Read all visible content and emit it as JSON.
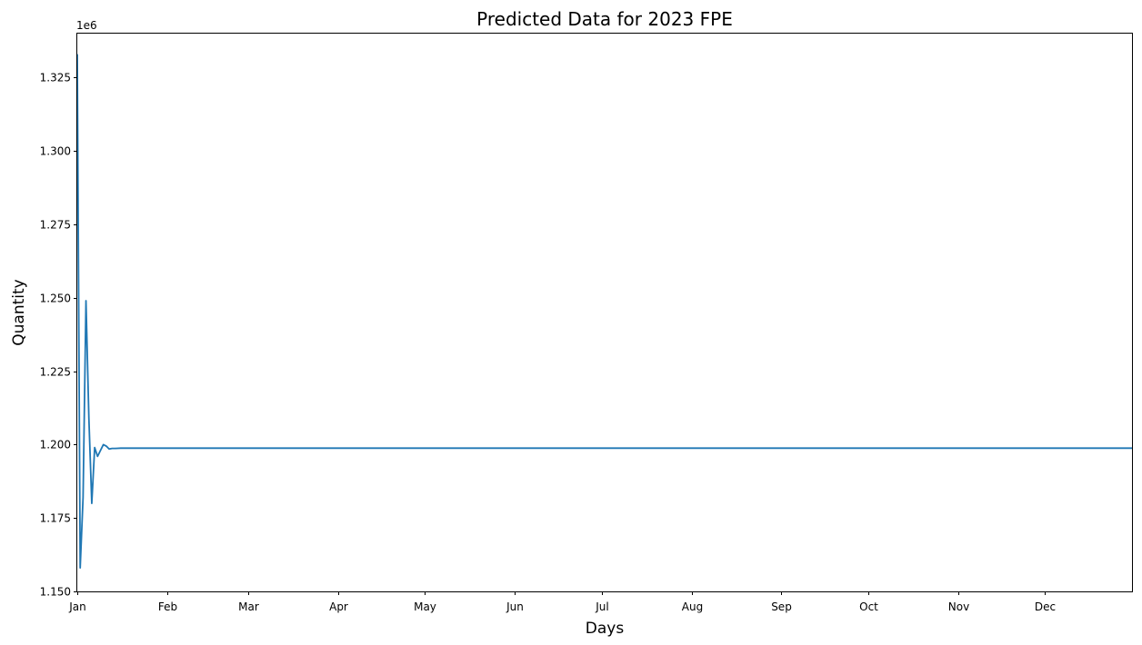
{
  "chart_data": {
    "type": "line",
    "title": "Predicted Data for 2023 FPE",
    "xlabel": "Days",
    "ylabel": "Quantity",
    "y_offset_label": "1e6",
    "y_scale_factor": 1000000,
    "xlim": [
      "2023-01-01",
      "2023-12-31"
    ],
    "ylim": [
      1.15,
      1.34
    ],
    "y_ticks": [
      1.15,
      1.175,
      1.2,
      1.225,
      1.25,
      1.275,
      1.3,
      1.325
    ],
    "y_tick_labels": [
      "1.150",
      "1.175",
      "1.200",
      "1.225",
      "1.250",
      "1.275",
      "1.300",
      "1.325"
    ],
    "x_ticks": [
      "2023-01-01",
      "2023-02-01",
      "2023-03-01",
      "2023-04-01",
      "2023-05-01",
      "2023-06-01",
      "2023-07-01",
      "2023-08-01",
      "2023-09-01",
      "2023-10-01",
      "2023-11-01",
      "2023-12-01"
    ],
    "x_tick_labels": [
      "Jan",
      "Feb",
      "Mar",
      "Apr",
      "May",
      "Jun",
      "Jul",
      "Aug",
      "Sep",
      "Oct",
      "Nov",
      "Dec"
    ],
    "grid": false,
    "series": [
      {
        "color": "#1f77b4",
        "points": [
          {
            "x": "2023-01-01",
            "y": 1.333
          },
          {
            "x": "2023-01-02",
            "y": 1.158
          },
          {
            "x": "2023-01-03",
            "y": 1.182
          },
          {
            "x": "2023-01-04",
            "y": 1.249
          },
          {
            "x": "2023-01-05",
            "y": 1.209
          },
          {
            "x": "2023-01-06",
            "y": 1.18
          },
          {
            "x": "2023-01-07",
            "y": 1.199
          },
          {
            "x": "2023-01-08",
            "y": 1.196
          },
          {
            "x": "2023-01-09",
            "y": 1.198
          },
          {
            "x": "2023-01-10",
            "y": 1.2
          },
          {
            "x": "2023-01-11",
            "y": 1.1995
          },
          {
            "x": "2023-01-12",
            "y": 1.1985
          },
          {
            "x": "2023-01-13",
            "y": 1.1987
          },
          {
            "x": "2023-01-14",
            "y": 1.1987
          },
          {
            "x": "2023-01-16",
            "y": 1.1988
          },
          {
            "x": "2023-01-20",
            "y": 1.1988
          },
          {
            "x": "2023-03-01",
            "y": 1.1988
          },
          {
            "x": "2023-06-01",
            "y": 1.1988
          },
          {
            "x": "2023-09-01",
            "y": 1.1988
          },
          {
            "x": "2023-12-31",
            "y": 1.1988
          }
        ]
      }
    ]
  }
}
